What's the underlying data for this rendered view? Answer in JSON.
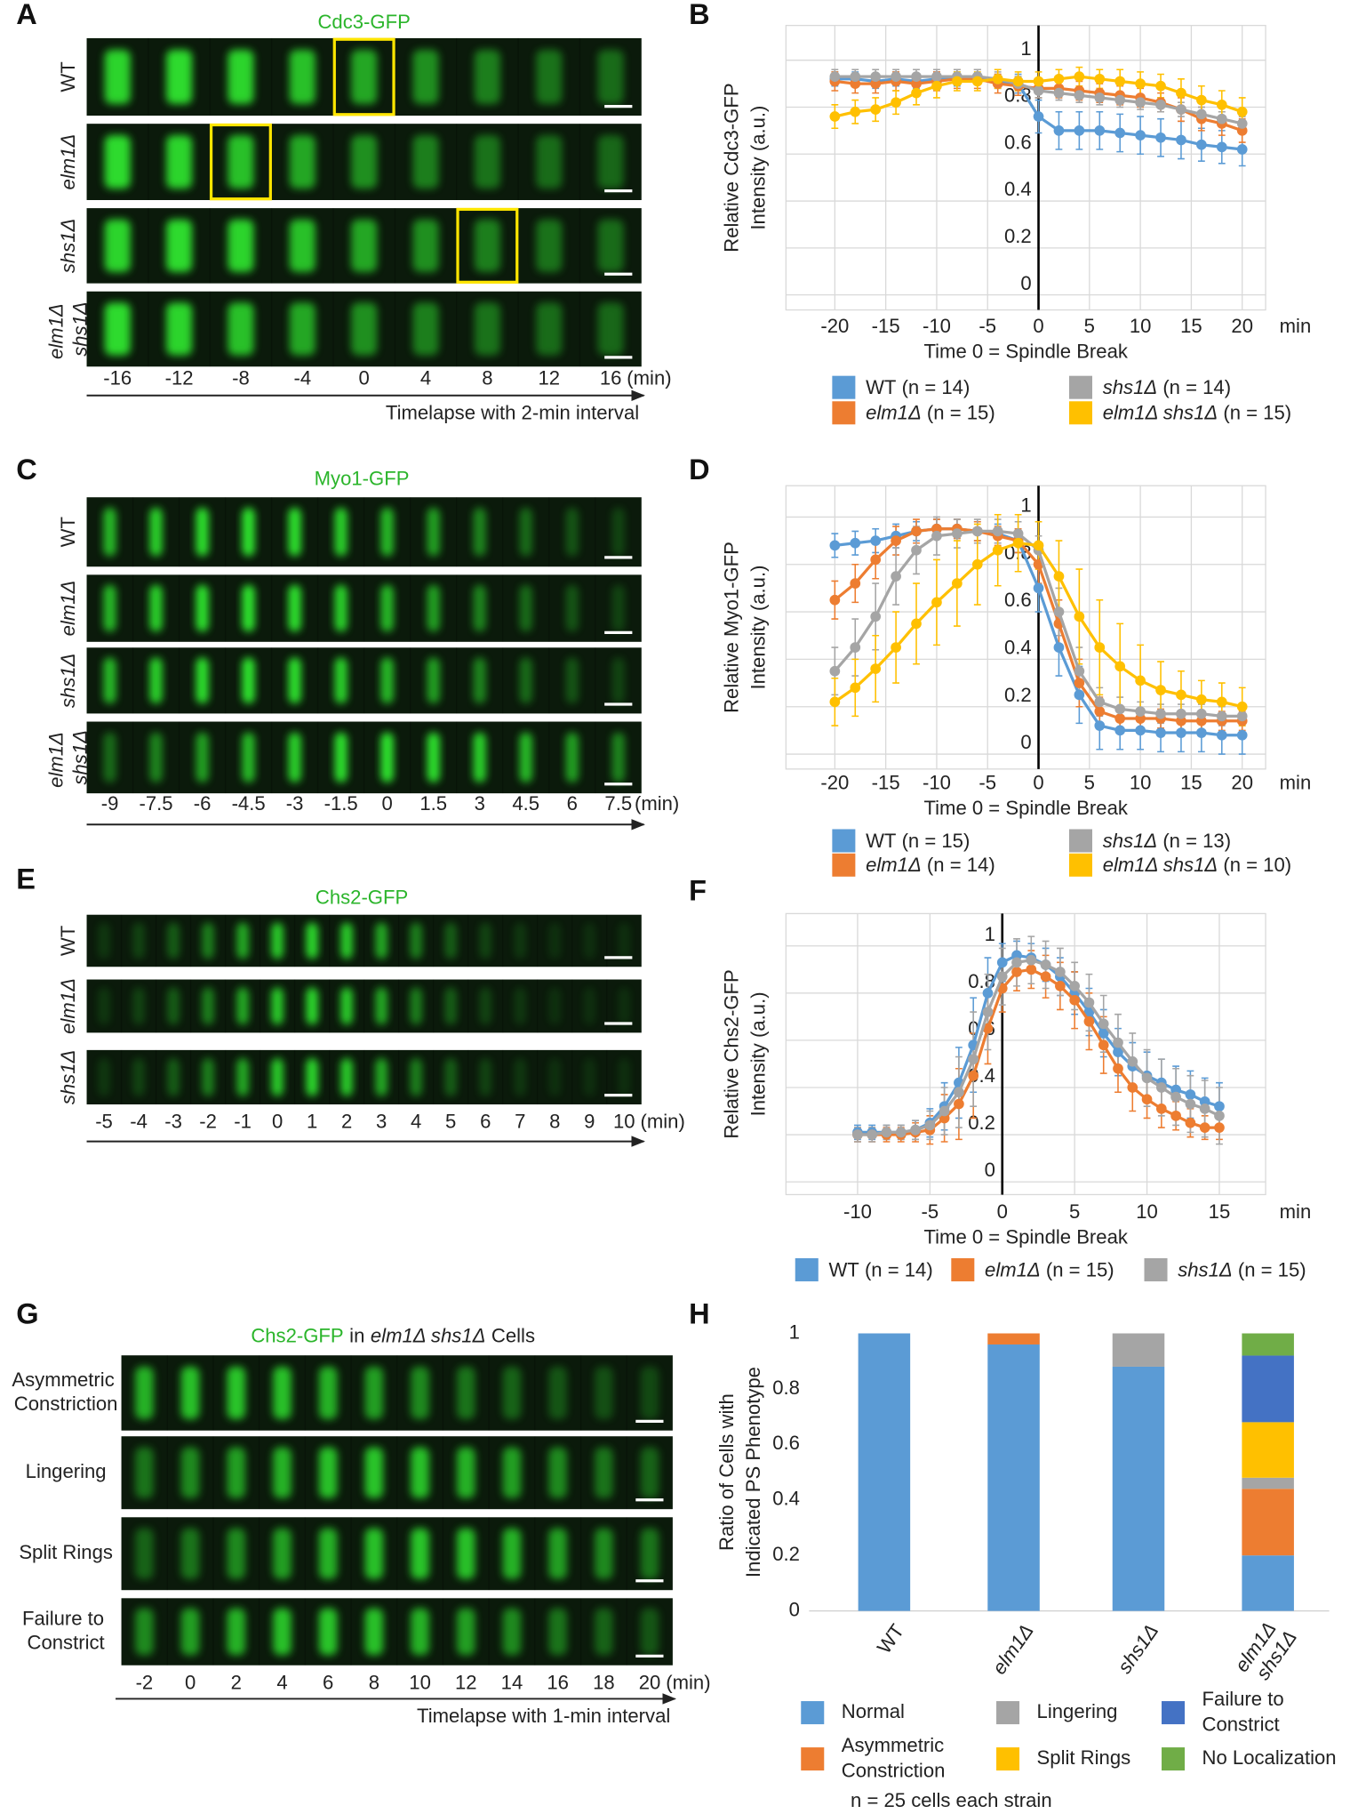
{
  "micrographs": [
    {
      "label": "A",
      "title": [
        "Cdc3-GFP"
      ],
      "rows": [
        "WT",
        "elm1Δ",
        "shs1Δ",
        "elm1Δ shs1Δ"
      ],
      "times": [
        "-16",
        "-12",
        "-8",
        "-4",
        "0",
        "4",
        "8",
        "12",
        "16"
      ],
      "time_unit": "(min)",
      "caption": "Timelapse with 2-min interval"
    },
    {
      "label": "C",
      "title": [
        "Myo1-GFP"
      ],
      "rows": [
        "WT",
        "elm1Δ",
        "shs1Δ",
        "elm1Δ shs1Δ"
      ],
      "times": [
        "-9",
        "-7.5",
        "-6",
        "-4.5",
        "-3",
        "-1.5",
        "0",
        "1.5",
        "3",
        "4.5",
        "6",
        "7.5"
      ],
      "time_unit": "(min)"
    },
    {
      "label": "E",
      "title": [
        "Chs2-GFP"
      ],
      "rows": [
        "WT",
        "elm1Δ",
        "shs1Δ"
      ],
      "times": [
        "-5",
        "-4",
        "-3",
        "-2",
        "-1",
        "0",
        "1",
        "2",
        "3",
        "4",
        "5",
        "6",
        "7",
        "8",
        "9",
        "10"
      ],
      "time_unit": "(min)"
    },
    {
      "label": "G",
      "title": [
        "Chs2-GFP",
        "in",
        "elm1Δ shs1Δ",
        "Cells"
      ],
      "rows": [
        "Asymmetric Constriction",
        "Lingering",
        "Split Rings",
        "Failure to Constrict"
      ],
      "times": [
        "-2",
        "0",
        "2",
        "4",
        "6",
        "8",
        "10",
        "12",
        "14",
        "16",
        "18",
        "20"
      ],
      "time_unit": "(min)",
      "caption": "Timelapse with 1-min interval"
    }
  ],
  "chart_data": [
    {
      "type": "line",
      "label": "B",
      "ylabel": [
        "Relative Cdc3-GFP",
        "Intensity (a.u.)"
      ],
      "xlabel": "Time 0 =  Spindle Break",
      "xunit": "min",
      "grid": true,
      "x": [
        -20,
        -18,
        -16,
        -14,
        -12,
        -10,
        -8,
        -6,
        -4,
        -2,
        0,
        2,
        4,
        6,
        8,
        10,
        12,
        14,
        16,
        18,
        20
      ],
      "xlim": [
        -24.8,
        22.3
      ],
      "ylim": [
        -0.064,
        1.148
      ],
      "xticks": [
        -20,
        -15,
        -10,
        -5,
        0,
        5,
        10,
        15,
        20
      ],
      "yticks": [
        0,
        0.2,
        0.4,
        0.6,
        0.8,
        1
      ],
      "series": [
        {
          "name": "WT (n = 14)",
          "color": "#5b9bd5",
          "values": [
            0.92,
            0.92,
            0.91,
            0.92,
            0.91,
            0.92,
            0.92,
            0.93,
            0.91,
            0.9,
            0.76,
            0.7,
            0.7,
            0.7,
            0.69,
            0.68,
            0.67,
            0.66,
            0.64,
            0.63,
            0.62
          ],
          "errors": [
            0.03,
            0.03,
            0.03,
            0.03,
            0.03,
            0.03,
            0.03,
            0.03,
            0.03,
            0.04,
            0.07,
            0.08,
            0.08,
            0.08,
            0.08,
            0.08,
            0.08,
            0.08,
            0.07,
            0.07,
            0.07
          ]
        },
        {
          "name": "elm1Δ (n = 15)",
          "color": "#ed7d31",
          "values": [
            0.91,
            0.9,
            0.9,
            0.91,
            0.9,
            0.91,
            0.92,
            0.92,
            0.9,
            0.89,
            0.88,
            0.88,
            0.87,
            0.86,
            0.85,
            0.84,
            0.82,
            0.79,
            0.75,
            0.73,
            0.7
          ],
          "errors": [
            0.04,
            0.04,
            0.04,
            0.04,
            0.04,
            0.04,
            0.04,
            0.04,
            0.04,
            0.04,
            0.04,
            0.04,
            0.04,
            0.04,
            0.04,
            0.04,
            0.04,
            0.05,
            0.05,
            0.05,
            0.05
          ]
        },
        {
          "name": "shs1Δ (n = 14)",
          "color": "#a5a5a5",
          "values": [
            0.93,
            0.93,
            0.93,
            0.93,
            0.93,
            0.93,
            0.93,
            0.93,
            0.92,
            0.9,
            0.87,
            0.86,
            0.85,
            0.84,
            0.83,
            0.82,
            0.81,
            0.79,
            0.77,
            0.75,
            0.73
          ],
          "errors": [
            0.03,
            0.03,
            0.03,
            0.03,
            0.03,
            0.03,
            0.03,
            0.03,
            0.03,
            0.03,
            0.03,
            0.03,
            0.03,
            0.03,
            0.03,
            0.03,
            0.03,
            0.03,
            0.03,
            0.03,
            0.03
          ]
        },
        {
          "name": "elm1Δ shs1Δ (n = 15)",
          "color": "#ffc000",
          "values": [
            0.76,
            0.78,
            0.79,
            0.82,
            0.86,
            0.89,
            0.91,
            0.91,
            0.92,
            0.91,
            0.91,
            0.92,
            0.93,
            0.92,
            0.91,
            0.9,
            0.89,
            0.86,
            0.83,
            0.81,
            0.78
          ],
          "errors": [
            0.05,
            0.05,
            0.05,
            0.05,
            0.05,
            0.05,
            0.04,
            0.04,
            0.04,
            0.04,
            0.04,
            0.04,
            0.04,
            0.04,
            0.05,
            0.05,
            0.05,
            0.06,
            0.06,
            0.06,
            0.06
          ]
        }
      ]
    },
    {
      "type": "line",
      "label": "D",
      "ylabel": [
        "Relative Myo1-GFP",
        "Intensity (a.u.)"
      ],
      "xlabel": "Time 0 = Spindle Break",
      "xunit": "min",
      "grid": true,
      "x": [
        -20,
        -18,
        -16,
        -14,
        -12,
        -10,
        -8,
        -6,
        -4,
        -2,
        0,
        2,
        4,
        6,
        8,
        10,
        12,
        14,
        16,
        18,
        20
      ],
      "xlim": [
        -24.8,
        22.3
      ],
      "ylim": [
        -0.063,
        1.132
      ],
      "xticks": [
        -20,
        -15,
        -10,
        -5,
        0,
        5,
        10,
        15,
        20
      ],
      "yticks": [
        0,
        0.2,
        0.4,
        0.6,
        0.8,
        1
      ],
      "series": [
        {
          "name": "WT (n = 15)",
          "color": "#5b9bd5",
          "values": [
            0.88,
            0.89,
            0.9,
            0.92,
            0.94,
            0.95,
            0.95,
            0.94,
            0.93,
            0.9,
            0.7,
            0.45,
            0.25,
            0.12,
            0.1,
            0.1,
            0.09,
            0.09,
            0.09,
            0.08,
            0.08
          ],
          "errors": [
            0.05,
            0.05,
            0.05,
            0.05,
            0.04,
            0.04,
            0.04,
            0.04,
            0.04,
            0.05,
            0.1,
            0.12,
            0.12,
            0.1,
            0.08,
            0.08,
            0.08,
            0.08,
            0.08,
            0.08,
            0.08
          ]
        },
        {
          "name": "elm1Δ (n = 14)",
          "color": "#ed7d31",
          "values": [
            0.65,
            0.72,
            0.82,
            0.9,
            0.94,
            0.95,
            0.95,
            0.94,
            0.92,
            0.9,
            0.8,
            0.55,
            0.3,
            0.18,
            0.15,
            0.15,
            0.15,
            0.14,
            0.14,
            0.14,
            0.14
          ],
          "errors": [
            0.08,
            0.08,
            0.08,
            0.06,
            0.05,
            0.04,
            0.04,
            0.04,
            0.04,
            0.05,
            0.08,
            0.1,
            0.1,
            0.06,
            0.05,
            0.04,
            0.04,
            0.04,
            0.04,
            0.04,
            0.04
          ]
        },
        {
          "name": "shs1Δ (n = 13)",
          "color": "#a5a5a5",
          "values": [
            0.35,
            0.45,
            0.58,
            0.75,
            0.86,
            0.92,
            0.93,
            0.94,
            0.94,
            0.93,
            0.86,
            0.6,
            0.35,
            0.22,
            0.19,
            0.18,
            0.17,
            0.17,
            0.17,
            0.16,
            0.16
          ],
          "errors": [
            0.1,
            0.12,
            0.14,
            0.12,
            0.1,
            0.08,
            0.06,
            0.05,
            0.05,
            0.05,
            0.06,
            0.1,
            0.1,
            0.06,
            0.05,
            0.04,
            0.04,
            0.04,
            0.04,
            0.04,
            0.04
          ]
        },
        {
          "name": "elm1Δ shs1Δ (n = 10)",
          "color": "#ffc000",
          "values": [
            0.22,
            0.28,
            0.36,
            0.45,
            0.55,
            0.64,
            0.72,
            0.8,
            0.86,
            0.89,
            0.88,
            0.75,
            0.58,
            0.45,
            0.37,
            0.31,
            0.27,
            0.25,
            0.23,
            0.22,
            0.2
          ],
          "errors": [
            0.1,
            0.12,
            0.14,
            0.15,
            0.17,
            0.18,
            0.18,
            0.17,
            0.15,
            0.12,
            0.1,
            0.15,
            0.2,
            0.2,
            0.18,
            0.15,
            0.12,
            0.1,
            0.08,
            0.08,
            0.08
          ]
        }
      ]
    },
    {
      "type": "line",
      "label": "F",
      "ylabel": [
        "Relative Chs2-GFP",
        "Intensity (a.u.)"
      ],
      "xlabel": "Time 0 = Spindle Break",
      "xunit": "min",
      "grid": true,
      "x": [
        -10,
        -9,
        -8,
        -7,
        -6,
        -5,
        -4,
        -3,
        -2,
        -1,
        0,
        1,
        2,
        3,
        4,
        5,
        6,
        7,
        8,
        9,
        10,
        11,
        12,
        13,
        14,
        15
      ],
      "xlim": [
        -14.95,
        18.2
      ],
      "ylim": [
        -0.054,
        1.137
      ],
      "xticks": [
        -10,
        -5,
        0,
        5,
        10,
        15
      ],
      "yticks": [
        0,
        0.2,
        0.4,
        0.6,
        0.8,
        1
      ],
      "series": [
        {
          "name": "WT (n = 14)",
          "color": "#5b9bd5",
          "values": [
            0.21,
            0.21,
            0.21,
            0.21,
            0.22,
            0.25,
            0.32,
            0.42,
            0.58,
            0.8,
            0.93,
            0.96,
            0.95,
            0.92,
            0.87,
            0.8,
            0.72,
            0.63,
            0.55,
            0.49,
            0.45,
            0.42,
            0.39,
            0.37,
            0.34,
            0.32
          ],
          "errors": [
            0.03,
            0.03,
            0.03,
            0.03,
            0.04,
            0.06,
            0.1,
            0.15,
            0.2,
            0.15,
            0.08,
            0.06,
            0.06,
            0.07,
            0.08,
            0.09,
            0.1,
            0.1,
            0.1,
            0.1,
            0.1,
            0.1,
            0.1,
            0.1,
            0.1,
            0.1
          ]
        },
        {
          "name": "elm1Δ (n = 15)",
          "color": "#ed7d31",
          "values": [
            0.2,
            0.2,
            0.2,
            0.2,
            0.21,
            0.22,
            0.27,
            0.33,
            0.45,
            0.65,
            0.82,
            0.89,
            0.9,
            0.87,
            0.83,
            0.77,
            0.68,
            0.58,
            0.48,
            0.4,
            0.35,
            0.31,
            0.28,
            0.25,
            0.23,
            0.23
          ],
          "errors": [
            0.03,
            0.03,
            0.03,
            0.03,
            0.04,
            0.06,
            0.1,
            0.15,
            0.18,
            0.15,
            0.1,
            0.08,
            0.08,
            0.09,
            0.1,
            0.12,
            0.12,
            0.12,
            0.1,
            0.1,
            0.08,
            0.08,
            0.06,
            0.06,
            0.05,
            0.05
          ]
        },
        {
          "name": "shs1Δ (n = 15)",
          "color": "#a5a5a5",
          "values": [
            0.2,
            0.2,
            0.21,
            0.21,
            0.22,
            0.24,
            0.3,
            0.38,
            0.52,
            0.72,
            0.87,
            0.93,
            0.94,
            0.92,
            0.89,
            0.83,
            0.76,
            0.67,
            0.59,
            0.51,
            0.44,
            0.4,
            0.36,
            0.33,
            0.31,
            0.28
          ],
          "errors": [
            0.03,
            0.03,
            0.03,
            0.03,
            0.04,
            0.06,
            0.1,
            0.15,
            0.2,
            0.16,
            0.12,
            0.1,
            0.1,
            0.1,
            0.1,
            0.1,
            0.12,
            0.12,
            0.12,
            0.12,
            0.12,
            0.12,
            0.12,
            0.12,
            0.12,
            0.12
          ]
        }
      ]
    },
    {
      "type": "stacked-bar",
      "label": "H",
      "ylabel": [
        "Ratio of Cells with",
        "Indicated PS Phenotype"
      ],
      "footnote": "n = 25 cells each strain",
      "categories": [
        "WT",
        "elm1Δ",
        "shs1Δ",
        "elm1Δ shs1Δ"
      ],
      "ylim": [
        0,
        1
      ],
      "yticks": [
        0,
        0.2,
        0.4,
        0.6,
        0.8,
        1
      ],
      "series": [
        {
          "name": "Normal",
          "color": "#5b9bd5",
          "values": [
            1,
            0.96,
            0.88,
            0.2
          ]
        },
        {
          "name": "Asymmetric Constriction",
          "color": "#ed7d31",
          "values": [
            0,
            0.04,
            0,
            0.24
          ]
        },
        {
          "name": "Lingering",
          "color": "#a5a5a5",
          "values": [
            0,
            0,
            0.12,
            0.04
          ]
        },
        {
          "name": "Split Rings",
          "color": "#ffc000",
          "values": [
            0,
            0,
            0,
            0.2
          ]
        },
        {
          "name": "Failure to Constrict",
          "color": "#4472c4",
          "values": [
            0,
            0,
            0,
            0.24
          ]
        },
        {
          "name": "No Localization",
          "color": "#70ad47",
          "values": [
            0,
            0,
            0,
            0.08
          ]
        }
      ]
    }
  ]
}
